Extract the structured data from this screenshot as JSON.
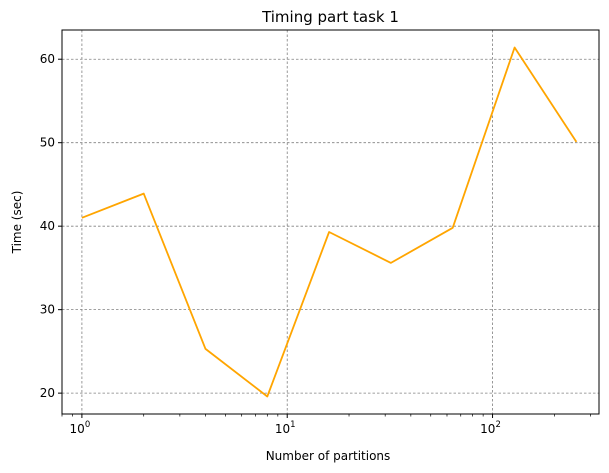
{
  "chart_data": {
    "type": "line",
    "title": "Timing part task 1",
    "xlabel": "Number of partitions",
    "ylabel": "Time (sec)",
    "xscale": "log",
    "xlim": [
      0.8,
      330
    ],
    "ylim": [
      17.5,
      63.5
    ],
    "x_ticks": [
      {
        "base": "10",
        "exp": "0",
        "value": 1
      },
      {
        "base": "10",
        "exp": "1",
        "value": 10
      },
      {
        "base": "10",
        "exp": "2",
        "value": 100
      }
    ],
    "y_ticks": [
      20,
      30,
      40,
      50,
      60
    ],
    "grid": true,
    "series": [
      {
        "color": "#FFA500",
        "x": [
          1,
          2,
          4,
          8,
          16,
          32,
          64,
          128,
          256
        ],
        "y": [
          41.0,
          43.9,
          25.3,
          19.6,
          39.3,
          35.6,
          39.8,
          61.4,
          50.1
        ]
      }
    ]
  }
}
